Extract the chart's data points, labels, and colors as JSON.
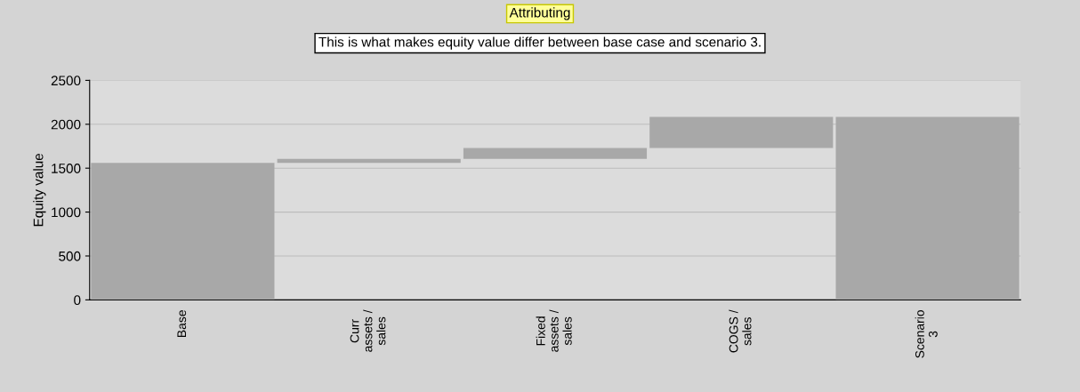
{
  "chart_data": {
    "type": "bar",
    "title": "Attributing",
    "subtitle": "This is what makes equity value differ between base case and scenario 3.",
    "ylabel": "Equity value",
    "categories": [
      "Base",
      "Curr\nassets /\nsales",
      "Fixed\nassets /\nsales",
      "COGS /\nsales",
      "Scenario\n3"
    ],
    "values": [
      1560,
      45,
      125,
      355,
      2085
    ],
    "base": [
      0,
      1560,
      1605,
      1730,
      0
    ],
    "color": "#a8a8a8",
    "ylim": [
      0,
      2500
    ],
    "yticks": [
      0,
      500,
      1000,
      1500,
      2000,
      2500
    ],
    "grid": "y"
  }
}
